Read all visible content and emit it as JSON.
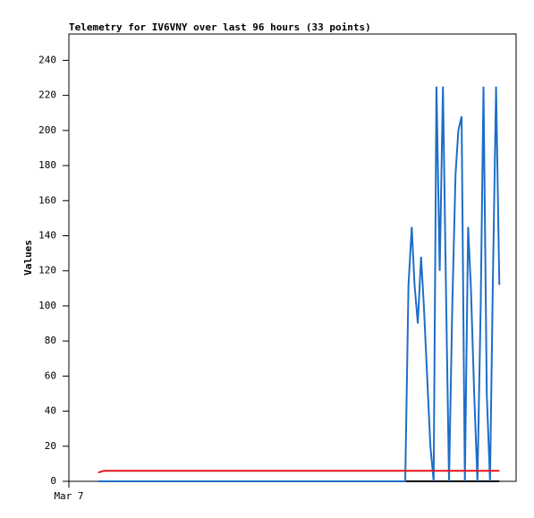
{
  "chart_data": {
    "type": "line",
    "title": "Telemetry for IV6VNY over last 96 hours (33 points)",
    "y_label": "Values",
    "x": [
      6.3,
      7.5,
      72.2,
      72.9,
      73.6,
      74.2,
      74.9,
      75.6,
      76.2,
      76.9,
      77.6,
      78.3,
      78.9,
      79.6,
      80.3,
      81.0,
      81.6,
      82.3,
      83.0,
      83.6,
      84.3,
      85.0,
      85.7,
      86.3,
      87.0,
      87.7,
      88.4,
      89.0,
      89.7,
      90.4,
      91.0,
      91.7,
      92.4
    ],
    "series": [
      {
        "color": "#000000",
        "values": [
          0,
          0,
          0,
          0,
          0,
          0,
          0,
          0,
          0,
          0,
          0,
          0,
          0,
          0,
          0,
          0,
          0,
          0,
          0,
          0,
          0,
          0,
          0,
          0,
          0,
          0,
          0,
          0,
          0,
          0,
          0,
          0,
          0
        ]
      },
      {
        "color": "#1e6ec8",
        "values": [
          0,
          0,
          0,
          112,
          145,
          112,
          90,
          128,
          100,
          60,
          20,
          0,
          225,
          120,
          225,
          100,
          0,
          100,
          175,
          200,
          208,
          0,
          145,
          110,
          50,
          0,
          100,
          225,
          50,
          0,
          112,
          225,
          112
        ]
      },
      {
        "color": "#e8141c",
        "values": [
          5,
          6,
          6,
          6,
          6,
          6,
          6,
          6,
          6,
          6,
          6,
          6,
          6,
          6,
          6,
          6,
          6,
          6,
          6,
          6,
          6,
          6,
          6,
          6,
          6,
          6,
          6,
          6,
          6,
          6,
          6,
          6,
          6
        ]
      }
    ],
    "xlim": [
      0,
      96
    ],
    "xticks": [
      {
        "value": 0,
        "label": "Mar 7"
      }
    ],
    "ylim": [
      0,
      255
    ],
    "yticks": [
      0,
      20,
      40,
      60,
      80,
      100,
      120,
      140,
      160,
      180,
      200,
      220,
      240
    ]
  }
}
